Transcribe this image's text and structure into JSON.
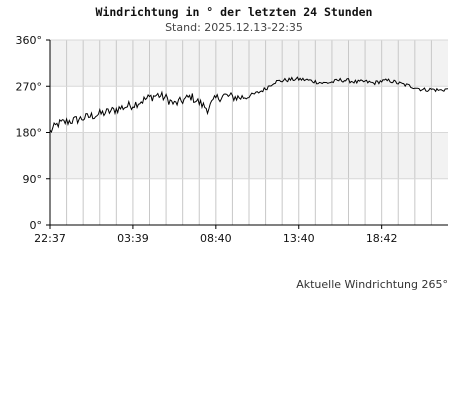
{
  "chart_data": {
    "type": "line",
    "title": "Windrichtung in ° der letzten 24 Stunden",
    "subtitle": "Stand: 2025.12.13-22:35",
    "ylim": [
      0,
      360
    ],
    "yticks": [
      {
        "value": 360,
        "label": "360°"
      },
      {
        "value": 270,
        "label": "270°"
      },
      {
        "value": 180,
        "label": "180°"
      },
      {
        "value": 90,
        "label": "90°"
      },
      {
        "value": 0,
        "label": "0°"
      }
    ],
    "xlim_hours": [
      0,
      24
    ],
    "xticks": [
      {
        "hour": 0,
        "label": "22:37"
      },
      {
        "hour": 5,
        "label": "03:39"
      },
      {
        "hour": 10,
        "label": "08:40"
      },
      {
        "hour": 15,
        "label": "13:40"
      },
      {
        "hour": 20,
        "label": "18:42"
      }
    ],
    "bands": [
      {
        "from": 180,
        "to": 270,
        "color": "#ffffff"
      },
      {
        "from": 90,
        "to": 180,
        "color": "#f2f2f2"
      },
      {
        "from": 270,
        "to": 360,
        "color": "#f2f2f2"
      },
      {
        "from": 0,
        "to": 90,
        "color": "#ffffff"
      }
    ],
    "grid": true,
    "line_color": "#000000",
    "series": [
      {
        "name": "",
        "points": [
          [
            0.0,
            182
          ],
          [
            0.5,
            197
          ],
          [
            1.0,
            201
          ],
          [
            1.5,
            204
          ],
          [
            2.0,
            208
          ],
          [
            2.5,
            212
          ],
          [
            3.0,
            216
          ],
          [
            3.5,
            220
          ],
          [
            4.0,
            225
          ],
          [
            4.5,
            230
          ],
          [
            5.0,
            234
          ],
          [
            5.5,
            241
          ],
          [
            6.0,
            248
          ],
          [
            6.5,
            253
          ],
          [
            7.0,
            247
          ],
          [
            7.5,
            235
          ],
          [
            8.0,
            242
          ],
          [
            8.5,
            250
          ],
          [
            9.0,
            238
          ],
          [
            9.5,
            226
          ],
          [
            10.0,
            246
          ],
          [
            10.5,
            252
          ],
          [
            11.0,
            249
          ],
          [
            11.5,
            248
          ],
          [
            12.0,
            251
          ],
          [
            12.5,
            257
          ],
          [
            13.0,
            265
          ],
          [
            13.5,
            278
          ],
          [
            14.0,
            281
          ],
          [
            14.5,
            283
          ],
          [
            15.0,
            284
          ],
          [
            15.5,
            282
          ],
          [
            16.0,
            279
          ],
          [
            16.5,
            276
          ],
          [
            17.0,
            278
          ],
          [
            17.5,
            282
          ],
          [
            18.0,
            281
          ],
          [
            18.5,
            278
          ],
          [
            19.0,
            279
          ],
          [
            19.5,
            276
          ],
          [
            20.0,
            280
          ],
          [
            20.5,
            281
          ],
          [
            21.0,
            276
          ],
          [
            21.5,
            272
          ],
          [
            22.0,
            268
          ],
          [
            22.5,
            263
          ],
          [
            23.0,
            264
          ],
          [
            23.5,
            262
          ],
          [
            24.0,
            265
          ]
        ]
      }
    ]
  },
  "current": {
    "label": "Aktuelle Windrichtung 265°"
  }
}
